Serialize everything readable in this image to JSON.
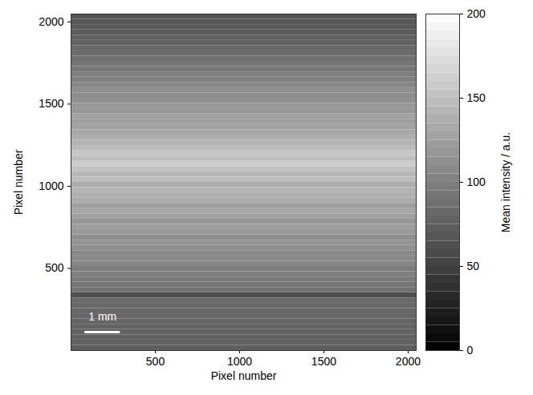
{
  "chart_data": {
    "type": "heatmap",
    "xlabel": "Pixel number",
    "ylabel": "Pixel number",
    "xlim": [
      0,
      2048
    ],
    "ylim": [
      0,
      2048
    ],
    "xticks": [
      500,
      1000,
      1500,
      2000
    ],
    "yticks": [
      500,
      1000,
      1500,
      2000
    ],
    "y_bins": [
      0,
      32,
      64,
      96,
      128,
      160,
      192,
      224,
      256,
      288,
      320,
      352,
      384,
      416,
      448,
      480,
      512,
      544,
      576,
      608,
      640,
      672,
      704,
      736,
      768,
      800,
      832,
      864,
      896,
      928,
      960,
      992,
      1024,
      1056,
      1088,
      1120,
      1152,
      1184,
      1216,
      1248,
      1280,
      1312,
      1344,
      1376,
      1408,
      1440,
      1472,
      1504,
      1536,
      1568,
      1600,
      1632,
      1664,
      1696,
      1728,
      1760,
      1792,
      1824,
      1856,
      1888,
      1920,
      1952,
      1984,
      2016,
      2048
    ],
    "values": [
      74,
      76,
      75,
      77,
      78,
      79,
      80,
      81,
      82,
      83,
      62,
      90,
      92,
      96,
      100,
      98,
      104,
      108,
      106,
      112,
      116,
      112,
      120,
      124,
      118,
      126,
      130,
      124,
      134,
      138,
      142,
      136,
      148,
      144,
      152,
      160,
      150,
      156,
      146,
      140,
      136,
      130,
      128,
      124,
      126,
      118,
      120,
      114,
      110,
      112,
      104,
      100,
      98,
      94,
      92,
      88,
      84,
      82,
      78,
      76,
      72,
      70,
      68,
      66
    ],
    "colorbar": {
      "label": "Mean intensity / a.u.",
      "range": [
        0,
        200
      ],
      "ticks": [
        0,
        50,
        100,
        150,
        200
      ]
    },
    "scale_bar": {
      "label": "1 mm",
      "length": 210
    }
  }
}
